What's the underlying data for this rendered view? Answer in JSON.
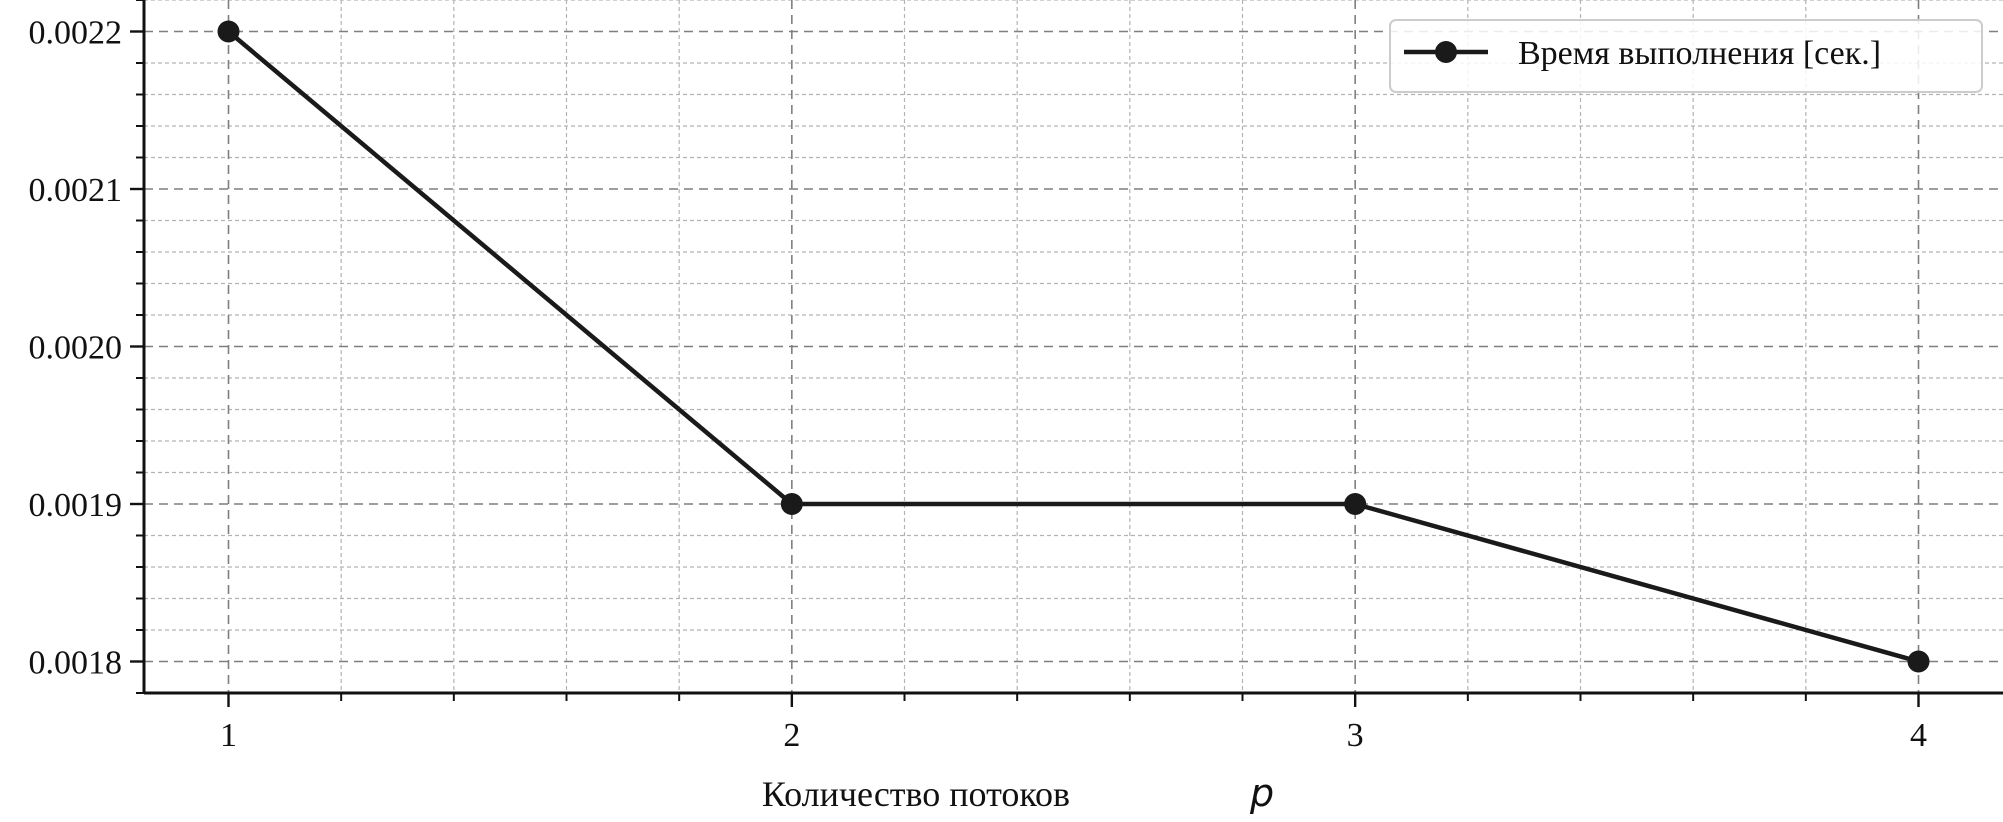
{
  "chart_data": {
    "type": "line",
    "x": [
      1,
      2,
      3,
      4
    ],
    "series": [
      {
        "name": "Время выполнения [сек.]",
        "values": [
          0.0022,
          0.0019,
          0.0019,
          0.0018
        ]
      }
    ],
    "x_ticks": [
      "1",
      "2",
      "3",
      "4"
    ],
    "y_ticks": [
      "0.0018",
      "0.0019",
      "0.0020",
      "0.0021",
      "0.0022"
    ],
    "xlabel": "Количество потоков",
    "xlabel_var": "p",
    "ylabel": "",
    "xlim": [
      0.85,
      4.15
    ],
    "ylim": [
      0.00178,
      0.00222
    ],
    "grid": true,
    "minor_grid": true,
    "legend_position": "top-right",
    "line_color": "#1a1a1a",
    "marker": "circle"
  }
}
